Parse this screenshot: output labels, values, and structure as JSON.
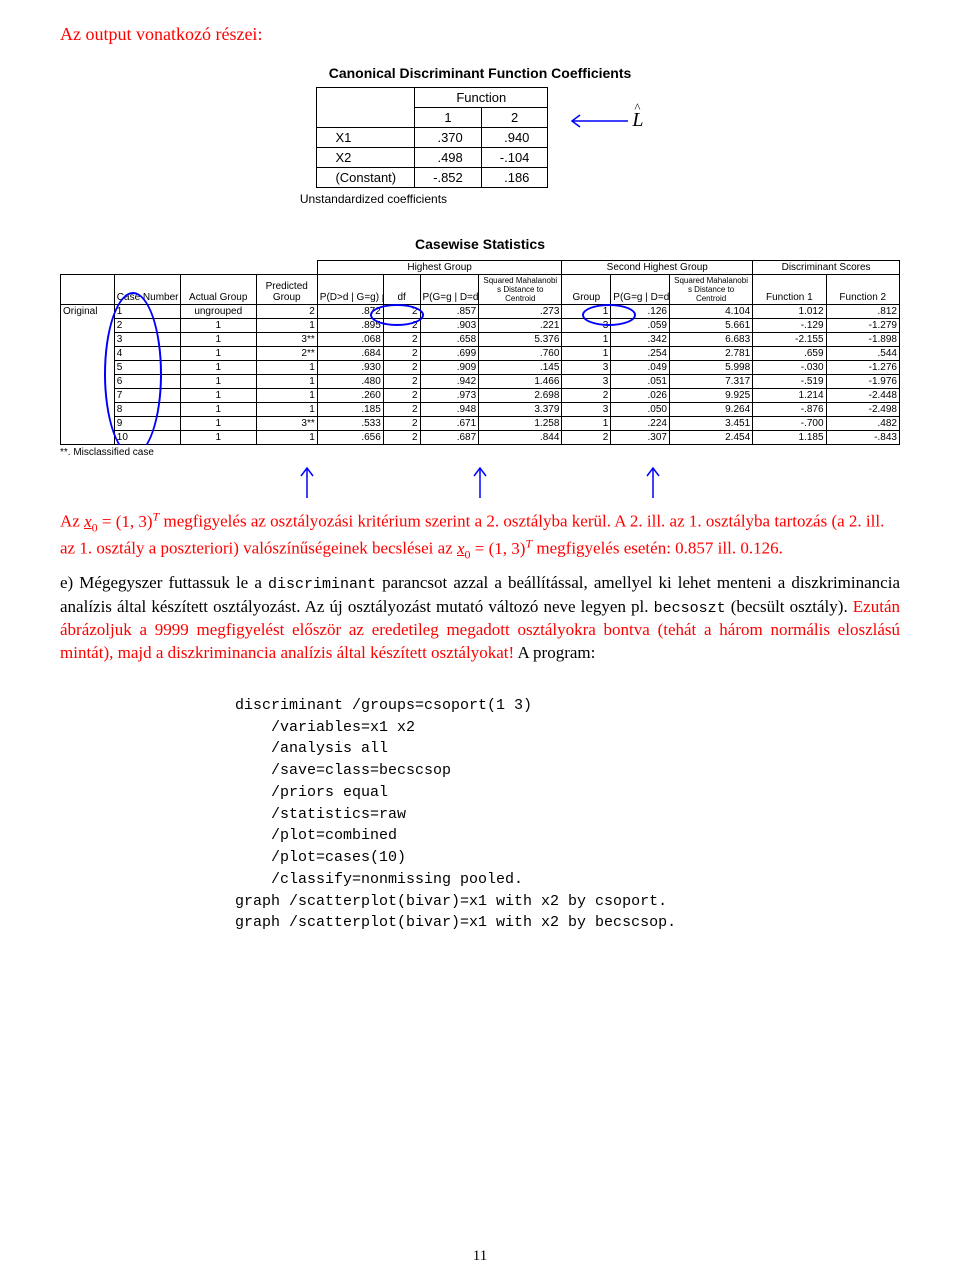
{
  "heading": "Az output vonatkozó részei:",
  "coeff_table": {
    "title": "Canonical Discriminant Function Coefficients",
    "function_label": "Function",
    "cols": [
      "1",
      "2"
    ],
    "rows": [
      {
        "label": "X1",
        "v1": ".370",
        "v2": ".940"
      },
      {
        "label": "X2",
        "v1": ".498",
        "v2": "-.104"
      },
      {
        "label": "(Constant)",
        "v1": "-.852",
        "v2": ".186"
      }
    ],
    "footer": "Unstandardized coefficients",
    "lhat": "L"
  },
  "casewise": {
    "title": "Casewise Statistics",
    "group_headers": {
      "hg": "Highest Group",
      "shg": "Second Highest Group",
      "ds": "Discriminant Scores"
    },
    "col_headers": [
      "",
      "Case Number",
      "Actual Group",
      "Predicted Group",
      "P(D>d | G=g)  p",
      "df",
      "P(G=g | D=d)",
      "Squared Mahalanobi s Distance to Centroid",
      "Group",
      "P(G=g | D=d)",
      "Squared Mahalanobi s Distance to Centroid",
      "Function 1",
      "Function 2"
    ],
    "original_label": "Original",
    "rows": [
      {
        "n": "1",
        "act": "ungrouped",
        "pred": "2",
        "p": ".872",
        "df": "2",
        "pg": ".857",
        "sq": ".273",
        "g2": "1",
        "pg2": ".126",
        "sq2": "4.104",
        "f1": "1.012",
        "f2": ".812"
      },
      {
        "n": "2",
        "act": "1",
        "pred": "1",
        "p": ".895",
        "df": "2",
        "pg": ".903",
        "sq": ".221",
        "g2": "3",
        "pg2": ".059",
        "sq2": "5.661",
        "f1": "-.129",
        "f2": "-1.279"
      },
      {
        "n": "3",
        "act": "1",
        "pred": "3**",
        "p": ".068",
        "df": "2",
        "pg": ".658",
        "sq": "5.376",
        "g2": "1",
        "pg2": ".342",
        "sq2": "6.683",
        "f1": "-2.155",
        "f2": "-1.898"
      },
      {
        "n": "4",
        "act": "1",
        "pred": "2**",
        "p": ".684",
        "df": "2",
        "pg": ".699",
        "sq": ".760",
        "g2": "1",
        "pg2": ".254",
        "sq2": "2.781",
        "f1": ".659",
        "f2": ".544"
      },
      {
        "n": "5",
        "act": "1",
        "pred": "1",
        "p": ".930",
        "df": "2",
        "pg": ".909",
        "sq": ".145",
        "g2": "3",
        "pg2": ".049",
        "sq2": "5.998",
        "f1": "-.030",
        "f2": "-1.276"
      },
      {
        "n": "6",
        "act": "1",
        "pred": "1",
        "p": ".480",
        "df": "2",
        "pg": ".942",
        "sq": "1.466",
        "g2": "3",
        "pg2": ".051",
        "sq2": "7.317",
        "f1": "-.519",
        "f2": "-1.976"
      },
      {
        "n": "7",
        "act": "1",
        "pred": "1",
        "p": ".260",
        "df": "2",
        "pg": ".973",
        "sq": "2.698",
        "g2": "2",
        "pg2": ".026",
        "sq2": "9.925",
        "f1": "1.214",
        "f2": "-2.448"
      },
      {
        "n": "8",
        "act": "1",
        "pred": "1",
        "p": ".185",
        "df": "2",
        "pg": ".948",
        "sq": "3.379",
        "g2": "3",
        "pg2": ".050",
        "sq2": "9.264",
        "f1": "-.876",
        "f2": "-2.498"
      },
      {
        "n": "9",
        "act": "1",
        "pred": "3**",
        "p": ".533",
        "df": "2",
        "pg": ".671",
        "sq": "1.258",
        "g2": "1",
        "pg2": ".224",
        "sq2": "3.451",
        "f1": "-.700",
        "f2": ".482"
      },
      {
        "n": "10",
        "act": "1",
        "pred": "1",
        "p": ".656",
        "df": "2",
        "pg": ".687",
        "sq": ".844",
        "g2": "2",
        "pg2": ".307",
        "sq2": "2.454",
        "f1": "1.185",
        "f2": "-.843"
      }
    ],
    "footnote": "**. Misclassified case"
  },
  "paragraph1": {
    "pre": "Az ",
    "x0": "x",
    "sub0": "0",
    "eq": " = (1, 3)",
    "T": "T",
    "post1": " megfigyelés az osztályozási kritérium szerint a 2. osztályba kerül. A 2. ill. az 1. osztályba tartozás (a 2. ill. az 1. osztály a poszteriori) valószínűségeinek becslései az ",
    "post2": " megfigyelés esetén: 0.857 ill. 0.126."
  },
  "paragraph2_parts": {
    "black1": "e) Mégegyszer futtassuk le a ",
    "mono1": "discriminant",
    "black2": " parancsot azzal a beállítással, amellyel ki lehet menteni a diszkriminancia analízis által készített osztályozást. Az új osztályozást mutató változó neve legyen pl. ",
    "mono2": "becsoszt",
    "black3": " (becsült osztály). ",
    "red1": "Ezután ábrázoljuk a 9999 megfigyelést először az eredetileg megadott osztályokra bontva (tehát a három normális eloszlású mintát), majd a diszkriminancia analízis által készített osztályokat! ",
    "black4": "A program:"
  },
  "code": "discriminant /groups=csoport(1 3)\n    /variables=x1 x2\n    /analysis all\n    /save=class=becscsop\n    /priors equal\n    /statistics=raw\n    /plot=combined\n    /plot=cases(10)\n    /classify=nonmissing pooled.\ngraph /scatterplot(bivar)=x1 with x2 by csoport.\ngraph /scatterplot(bivar)=x1 with x2 by becscsop.",
  "page_number": "11",
  "colors": {
    "red": "#ff0000",
    "blue": "#0000ff",
    "black": "#000000"
  }
}
